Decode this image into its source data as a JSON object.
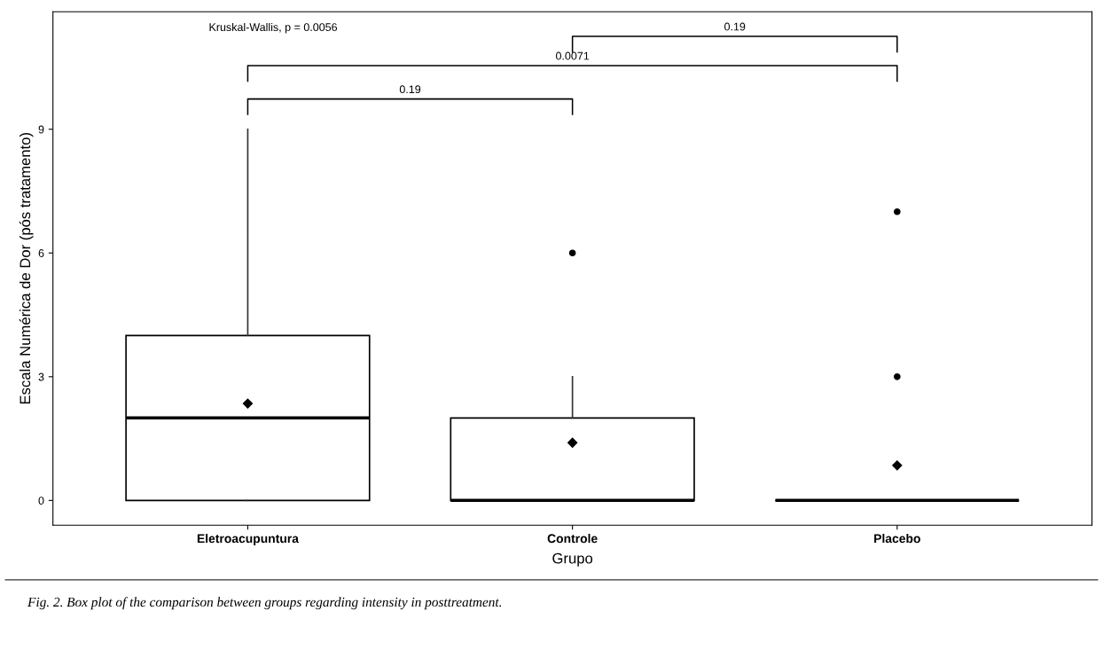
{
  "chart_data": {
    "type": "box",
    "xlabel": "Grupo",
    "ylabel": "Escala Numérica de Dor (pós tratamento)",
    "categories": [
      "Eletroacupuntura",
      "Controle",
      "Placebo"
    ],
    "boxes": [
      {
        "low": 0,
        "q1": 0,
        "median": 2,
        "q3": 4,
        "high": 9,
        "mean": 2.35
      },
      {
        "low": 0,
        "q1": 0,
        "median": 0,
        "q3": 2,
        "high": 3,
        "mean": 1.4,
        "outliers": [
          6
        ]
      },
      {
        "low": 0,
        "q1": 0,
        "median": 0,
        "q3": 0,
        "high": 0,
        "mean": 0.85,
        "outliers": [
          3,
          7
        ]
      }
    ],
    "ylim": [
      -0.6,
      11.85
    ],
    "yticks": [
      0,
      3,
      6,
      9
    ],
    "grid": false,
    "annotations": [
      "Kruskal-Wallis, p = 0.0056",
      "0.19",
      "0.0071",
      "0.19",
      "Fig. 2. Box plot of the comparison between groups regarding intensity in posttreatment."
    ]
  }
}
